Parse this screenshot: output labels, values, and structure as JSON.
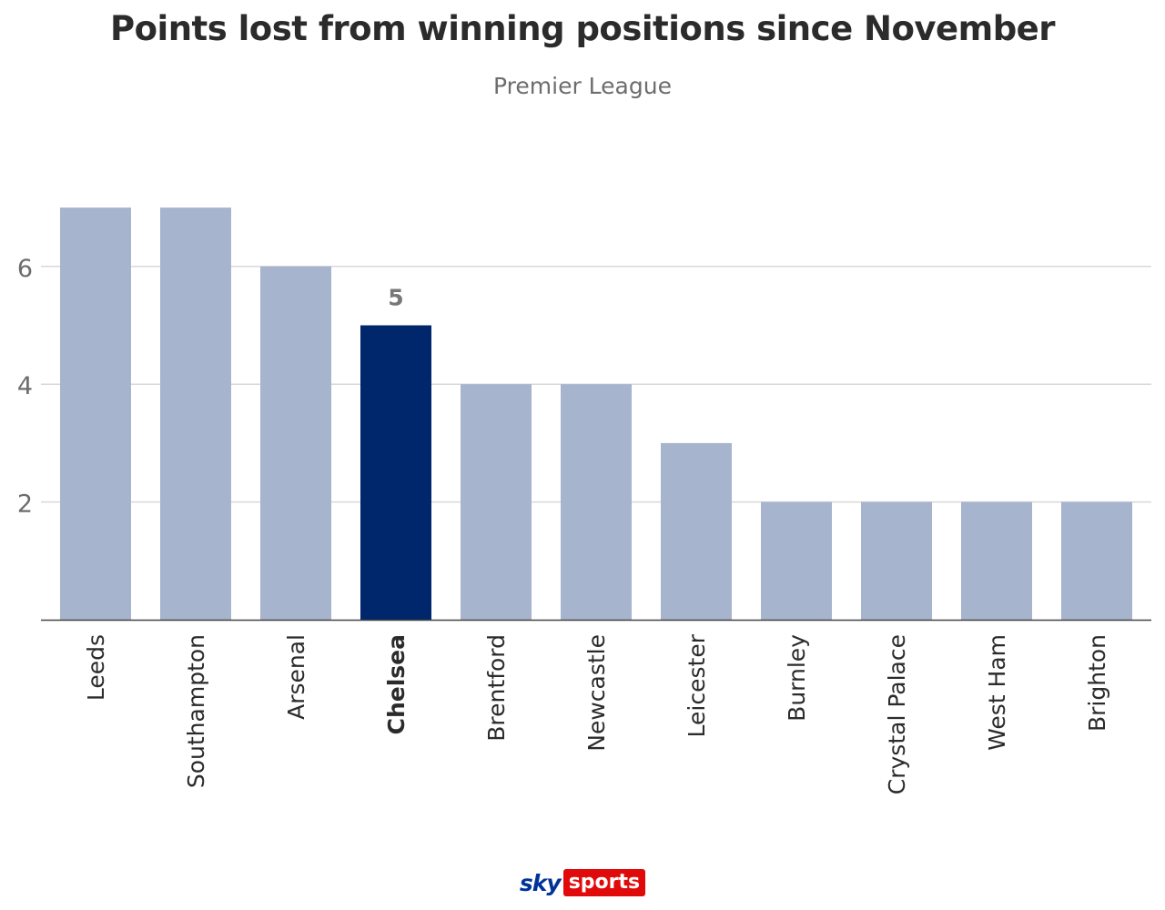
{
  "header": {
    "title": "Points lost from winning positions since November",
    "subtitle": "Premier League"
  },
  "branding": {
    "sky": "sky",
    "sports": "sports"
  },
  "colors": {
    "bar": "#a6b4cd",
    "highlight_bar": "#00266b",
    "grid": "#d8d8d8",
    "axis": "#444444",
    "tick_label": "#6d6d6d",
    "category_label": "#2b2b2b",
    "data_label": "#777777"
  },
  "chart_data": {
    "type": "bar",
    "title": "Points lost from winning positions since November",
    "subtitle": "Premier League",
    "categories": [
      "Leeds",
      "Southampton",
      "Arsenal",
      "Chelsea",
      "Brentford",
      "Newcastle",
      "Leicester",
      "Burnley",
      "Crystal Palace",
      "West Ham",
      "Brighton"
    ],
    "values": [
      7,
      7,
      6,
      5,
      4,
      4,
      3,
      2,
      2,
      2,
      2
    ],
    "highlight": "Chelsea",
    "data_labels": [
      {
        "category": "Chelsea",
        "text": "5"
      }
    ],
    "yticks": [
      2,
      4,
      6
    ],
    "ylim": [
      0,
      7
    ],
    "grid": true,
    "xlabel": "",
    "ylabel": ""
  }
}
